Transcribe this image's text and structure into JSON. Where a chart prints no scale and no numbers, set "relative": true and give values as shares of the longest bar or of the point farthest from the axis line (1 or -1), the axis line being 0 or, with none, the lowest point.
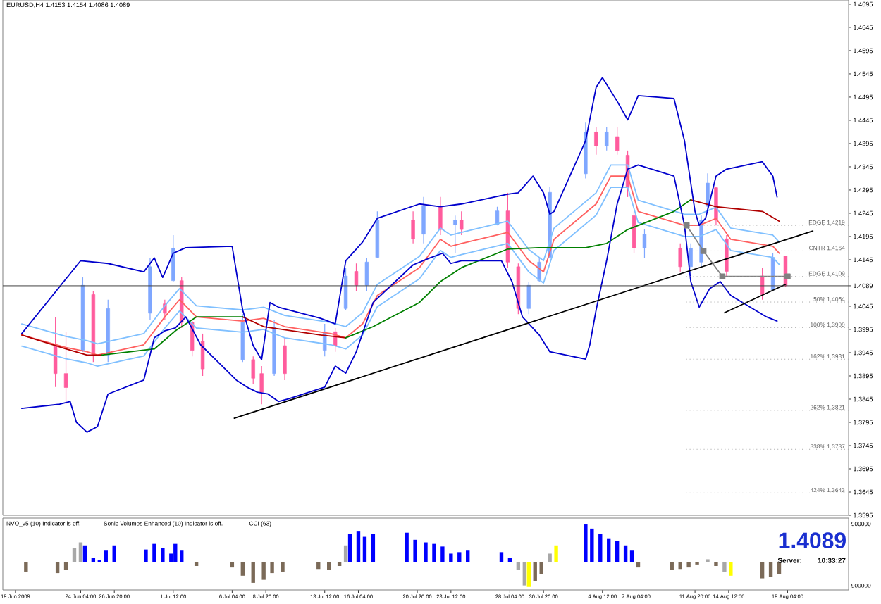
{
  "chart_data": [
    {
      "type": "candlestick",
      "title": "EURUSD,H4 1.4153 1.4154 1.4086 1.4089",
      "xlim": [
        "2009-06-18T00:00",
        "2009-08-24T00:00"
      ],
      "ylim": [
        1.3595,
        1.4704
      ],
      "tick_labels": "y",
      "yticks": [
        1.4695,
        1.4645,
        1.4595,
        1.4545,
        1.4495,
        1.4445,
        1.4395,
        1.4345,
        1.4295,
        1.4245,
        1.4195,
        1.4145,
        1.4089,
        1.4045,
        1.3995,
        1.3945,
        1.3895,
        1.3845,
        1.3795,
        1.3745,
        1.3695,
        1.3645,
        1.3595
      ],
      "x": [
        "2009-06-22T04:00",
        "2009-06-23T00:00",
        "2009-06-24T08:00",
        "2009-06-25T04:00",
        "2009-06-26T08:00",
        "2009-06-29T16:00",
        "2009-06-30T20:00",
        "2009-07-01T12:00",
        "2009-07-02T04:00",
        "2009-07-03T00:00",
        "2009-07-03T20:00",
        "2009-07-07T00:00",
        "2009-07-07T20:00",
        "2009-07-08T12:00",
        "2009-07-09T12:00",
        "2009-07-10T08:00",
        "2009-07-13T12:00",
        "2009-07-14T08:00",
        "2009-07-15T04:00",
        "2009-07-16T00:00",
        "2009-07-16T20:00",
        "2009-07-17T16:00",
        "2009-07-20T12:00",
        "2009-07-21T08:00",
        "2009-07-22T16:00",
        "2009-07-23T20:00",
        "2009-07-24T08:00",
        "2009-07-27T04:00",
        "2009-07-28T00:00",
        "2009-07-28T20:00",
        "2009-07-29T16:00",
        "2009-07-30T12:00",
        "2009-07-31T08:00",
        "2009-08-03T04:00",
        "2009-08-04T00:00",
        "2009-08-04T20:00",
        "2009-08-05T16:00",
        "2009-08-06T12:00",
        "2009-08-07T00:00",
        "2009-08-07T20:00",
        "2009-08-10T16:00",
        "2009-08-11T12:00",
        "2009-08-12T08:00",
        "2009-08-12T20:00",
        "2009-08-13T12:00",
        "2009-08-14T08:00",
        "2009-08-17T04:00",
        "2009-08-18T00:00",
        "2009-08-19T00:00"
      ],
      "ohlc": [
        [
          1.396,
          1.4022,
          1.3871,
          1.39
        ],
        [
          1.39,
          1.399,
          1.3834,
          1.387
        ],
        [
          1.395,
          1.4107,
          1.3947,
          1.409
        ],
        [
          1.407,
          1.4077,
          1.3925,
          1.394
        ],
        [
          1.394,
          1.4059,
          1.3925,
          1.404
        ],
        [
          1.403,
          1.4149,
          1.4016,
          1.413
        ],
        [
          1.405,
          1.4059,
          1.4016,
          1.403
        ],
        [
          1.41,
          1.4198,
          1.4098,
          1.417
        ],
        [
          1.41,
          1.4107,
          1.3998,
          1.401
        ],
        [
          1.401,
          1.4016,
          1.3937,
          1.395
        ],
        [
          1.397,
          1.3986,
          1.3895,
          1.391
        ],
        [
          1.393,
          1.4028,
          1.3925,
          1.401
        ],
        [
          1.393,
          1.3937,
          1.3877,
          1.389
        ],
        [
          1.39,
          1.3916,
          1.3834,
          1.386
        ],
        [
          1.39,
          1.4016,
          1.3895,
          1.4
        ],
        [
          1.396,
          1.3977,
          1.3886,
          1.39
        ],
        [
          1.395,
          1.4007,
          1.3937,
          1.399
        ],
        [
          1.399,
          1.3998,
          1.3947,
          1.396
        ],
        [
          1.404,
          1.4128,
          1.4037,
          1.411
        ],
        [
          1.412,
          1.4137,
          1.4077,
          1.409
        ],
        [
          1.409,
          1.4149,
          1.4077,
          1.414
        ],
        [
          1.415,
          1.4249,
          1.4149,
          1.423
        ],
        [
          1.423,
          1.4249,
          1.418,
          1.419
        ],
        [
          1.42,
          1.428,
          1.418,
          1.426
        ],
        [
          1.426,
          1.428,
          1.4198,
          1.421
        ],
        [
          1.422,
          1.424,
          1.4159,
          1.423
        ],
        [
          1.423,
          1.4249,
          1.4198,
          1.421
        ],
        [
          1.422,
          1.4259,
          1.4219,
          1.425
        ],
        [
          1.425,
          1.4289,
          1.4128,
          1.414
        ],
        [
          1.413,
          1.4137,
          1.4028,
          1.404
        ],
        [
          1.404,
          1.4098,
          1.4028,
          1.409
        ],
        [
          1.41,
          1.4149,
          1.4098,
          1.414
        ],
        [
          1.415,
          1.4301,
          1.4149,
          1.429
        ],
        [
          1.433,
          1.444,
          1.432,
          1.442
        ],
        [
          1.442,
          1.4431,
          1.4371,
          1.439
        ],
        [
          1.439,
          1.4431,
          1.438,
          1.442
        ],
        [
          1.441,
          1.4431,
          1.4371,
          1.438
        ],
        [
          1.437,
          1.438,
          1.428,
          1.43
        ],
        [
          1.424,
          1.4249,
          1.4159,
          1.417
        ],
        [
          1.417,
          1.421,
          1.4149,
          1.42
        ],
        [
          1.417,
          1.418,
          1.4119,
          1.413
        ],
        [
          1.413,
          1.418,
          1.4107,
          1.417
        ],
        [
          1.414,
          1.424,
          1.4128,
          1.423
        ],
        [
          1.426,
          1.4331,
          1.4249,
          1.431
        ],
        [
          1.43,
          1.4301,
          1.4219,
          1.423
        ],
        [
          1.419,
          1.4198,
          1.4107,
          1.412
        ],
        [
          1.411,
          1.4128,
          1.4059,
          1.407
        ],
        [
          1.408,
          1.4159,
          1.4077,
          1.415
        ],
        [
          1.4153,
          1.4154,
          1.4086,
          1.4089
        ]
      ],
      "colors": [
        "#ff5c9d",
        "#ff5c9d",
        "#7fa7ff",
        "#ff5c9d",
        "#7fa7ff",
        "#7fa7ff",
        "#ff5c9d",
        "#7fa7ff",
        "#ff5c9d",
        "#ff5c9d",
        "#ff5c9d",
        "#7fa7ff",
        "#ff5c9d",
        "#ff5c9d",
        "#7fa7ff",
        "#ff5c9d",
        "#7fa7ff",
        "#ff5c9d",
        "#7fa7ff",
        "#ff5c9d",
        "#7fa7ff",
        "#7fa7ff",
        "#ff5c9d",
        "#7fa7ff",
        "#ff5c9d",
        "#7fa7ff",
        "#ff5c9d",
        "#7fa7ff",
        "#ff5c9d",
        "#ff5c9d",
        "#7fa7ff",
        "#7fa7ff",
        "#7fa7ff",
        "#7fa7ff",
        "#ff5c9d",
        "#7fa7ff",
        "#ff5c9d",
        "#ff5c9d",
        "#ff5c9d",
        "#7fa7ff",
        "#ff5c9d",
        "#7fa7ff",
        "#7fa7ff",
        "#7fa7ff",
        "#ff5c9d",
        "#ff5c9d",
        "#ff5c9d",
        "#7fa7ff",
        "#ff5c9d"
      ],
      "series": [
        {
          "type": "line",
          "color": "#80c0ff",
          "x": [
            "2009-06-19T12:00",
            "2009-06-23T00:00",
            "2009-06-24T16:00",
            "2009-06-25T12:00",
            "2009-06-29T04:00",
            "2009-06-30T20:00",
            "2009-07-02T00:00",
            "2009-07-03T08:00",
            "2009-07-07T00:00",
            "2009-07-08T16:00",
            "2009-07-10T08:00",
            "2009-07-14T00:00",
            "2009-07-15T04:00",
            "2009-07-16T12:00",
            "2009-07-17T16:00",
            "2009-07-21T00:00",
            "2009-07-22T16:00",
            "2009-07-23T12:00",
            "2009-07-24T08:00",
            "2009-07-28T00:00",
            "2009-07-29T16:00",
            "2009-07-30T20:00",
            "2009-07-31T16:00",
            "2009-08-04T00:00",
            "2009-08-05T04:00",
            "2009-08-06T12:00",
            "2009-08-07T08:00",
            "2009-08-11T00:00",
            "2009-08-12T04:00",
            "2009-08-13T12:00",
            "2009-08-14T16:00",
            "2009-08-18T00:00",
            "2009-08-18T12:00"
          ],
          "values": [
            1.4007,
            1.398,
            1.3971,
            1.3964,
            1.3986,
            1.4046,
            1.4083,
            1.4046,
            1.4037,
            1.4043,
            1.4025,
            1.401,
            1.4001,
            1.4031,
            1.4092,
            1.4152,
            1.4213,
            1.4198,
            1.4204,
            1.4228,
            1.4167,
            1.4143,
            1.4213,
            1.4289,
            1.4349,
            1.4349,
            1.4273,
            1.4243,
            1.4243,
            1.4258,
            1.4213,
            1.4198,
            1.4183
          ]
        },
        {
          "type": "line",
          "color": "#80c0ff",
          "x": [
            "2009-06-19T12:00",
            "2009-06-23T00:00",
            "2009-06-24T16:00",
            "2009-06-25T12:00",
            "2009-06-29T04:00",
            "2009-06-30T20:00",
            "2009-07-02T00:00",
            "2009-07-03T08:00",
            "2009-07-07T00:00",
            "2009-07-08T16:00",
            "2009-07-10T08:00",
            "2009-07-14T00:00",
            "2009-07-15T04:00",
            "2009-07-16T12:00",
            "2009-07-17T16:00",
            "2009-07-21T00:00",
            "2009-07-22T16:00",
            "2009-07-23T12:00",
            "2009-07-24T08:00",
            "2009-07-28T00:00",
            "2009-07-29T16:00",
            "2009-07-30T20:00",
            "2009-07-31T16:00",
            "2009-08-04T00:00",
            "2009-08-05T04:00",
            "2009-08-06T12:00",
            "2009-08-07T08:00",
            "2009-08-11T00:00",
            "2009-08-12T04:00",
            "2009-08-13T12:00",
            "2009-08-14T16:00",
            "2009-08-18T00:00",
            "2009-08-18T12:00"
          ],
          "values": [
            1.3959,
            1.3932,
            1.3923,
            1.3916,
            1.3938,
            1.3998,
            1.4035,
            1.3998,
            1.3989,
            1.3995,
            1.3977,
            1.3962,
            1.3953,
            1.3983,
            1.4044,
            1.4104,
            1.4165,
            1.415,
            1.4156,
            1.418,
            1.4119,
            1.4095,
            1.4165,
            1.4241,
            1.4301,
            1.4301,
            1.4225,
            1.4195,
            1.4195,
            1.421,
            1.4165,
            1.415,
            1.4135
          ]
        },
        {
          "type": "line",
          "color": "#ff6060",
          "x": [
            "2009-06-19T12:00",
            "2009-06-23T00:00",
            "2009-06-24T16:00",
            "2009-06-25T12:00",
            "2009-06-29T04:00",
            "2009-06-30T20:00",
            "2009-07-02T00:00",
            "2009-07-03T08:00",
            "2009-07-07T00:00",
            "2009-07-08T16:00",
            "2009-07-10T08:00",
            "2009-07-14T00:00",
            "2009-07-15T04:00",
            "2009-07-16T12:00",
            "2009-07-17T16:00",
            "2009-07-21T00:00",
            "2009-07-22T16:00",
            "2009-07-23T12:00",
            "2009-07-24T08:00",
            "2009-07-28T00:00",
            "2009-07-29T16:00",
            "2009-07-30T20:00",
            "2009-07-31T16:00",
            "2009-08-04T00:00",
            "2009-08-05T04:00",
            "2009-08-06T12:00",
            "2009-08-07T08:00",
            "2009-08-11T00:00",
            "2009-08-12T04:00",
            "2009-08-13T12:00",
            "2009-08-14T16:00",
            "2009-08-18T00:00",
            "2009-08-18T12:00"
          ],
          "values": [
            1.3983,
            1.3956,
            1.3947,
            1.394,
            1.3962,
            1.4022,
            1.4059,
            1.4022,
            1.4013,
            1.4019,
            1.4001,
            1.3986,
            1.3977,
            1.4007,
            1.4068,
            1.4128,
            1.4189,
            1.4174,
            1.418,
            1.4204,
            1.4143,
            1.4119,
            1.4189,
            1.4265,
            1.4325,
            1.4325,
            1.4249,
            1.4219,
            1.4219,
            1.4234,
            1.4189,
            1.4174,
            1.4159
          ]
        },
        {
          "type": "line",
          "color": "#b00000",
          "x": [
            "2009-06-19T12:00",
            "2009-06-23T00:00",
            "2009-06-24T16:00",
            "2009-06-25T20:00"
          ],
          "values": [
            1.3983,
            1.3953,
            1.394,
            1.394
          ]
        },
        {
          "type": "line",
          "color": "#b00000",
          "x": [
            "2009-07-07T00:00",
            "2009-07-08T16:00",
            "2009-07-13T04:00",
            "2009-07-15T04:00"
          ],
          "values": [
            1.4022,
            1.4001,
            1.3983,
            1.3977
          ]
        },
        {
          "type": "line",
          "color": "#b00000",
          "x": [
            "2009-08-11T12:00",
            "2009-08-13T12:00",
            "2009-08-17T04:00",
            "2009-08-18T12:00"
          ],
          "values": [
            1.4274,
            1.4259,
            1.4249,
            1.4228
          ]
        },
        {
          "type": "line",
          "color": "#008000",
          "x": [
            "2009-06-25T20:00",
            "2009-06-30T00:00",
            "2009-07-01T16:00",
            "2009-07-03T08:00",
            "2009-07-07T00:00"
          ],
          "values": [
            1.394,
            1.3953,
            1.3992,
            1.4022,
            1.4022
          ]
        },
        {
          "type": "line",
          "color": "#008000",
          "x": [
            "2009-07-15T04:00",
            "2009-07-17T08:00",
            "2009-07-21T00:00",
            "2009-07-22T16:00",
            "2009-07-24T08:00",
            "2009-07-28T00:00",
            "2009-07-30T12:00",
            "2009-08-03T04:00",
            "2009-08-04T20:00",
            "2009-08-06T12:00",
            "2009-08-10T04:00",
            "2009-08-11T12:00"
          ],
          "values": [
            1.3977,
            1.4001,
            1.4053,
            1.4098,
            1.4128,
            1.4168,
            1.4171,
            1.4171,
            1.418,
            1.421,
            1.4249,
            1.4274
          ]
        },
        {
          "type": "line",
          "color": "#0000cc",
          "x": [
            "2009-06-19T12:00",
            "2009-06-24T04:00",
            "2009-06-26T08:00",
            "2009-06-29T04:00",
            "2009-06-30T00:00",
            "2009-06-30T16:00",
            "2009-07-01T12:00",
            "2009-07-02T12:00",
            "2009-07-06T04:00",
            "2009-07-07T00:00",
            "2009-07-07T20:00",
            "2009-07-08T12:00",
            "2009-07-09T04:00",
            "2009-07-09T20:00",
            "2009-07-13T04:00",
            "2009-07-14T08:00",
            "2009-07-15T04:00",
            "2009-07-16T12:00",
            "2009-07-17T16:00",
            "2009-07-21T00:00",
            "2009-07-22T16:00",
            "2009-07-24T08:00",
            "2009-07-28T00:00",
            "2009-07-28T20:00",
            "2009-07-30T00:00",
            "2009-07-30T20:00",
            "2009-07-31T08:00",
            "2009-07-31T16:00",
            "2009-08-03T04:00",
            "2009-08-04T00:00",
            "2009-08-04T12:00",
            "2009-08-05T16:00",
            "2009-08-06T12:00",
            "2009-08-07T08:00",
            "2009-08-10T04:00",
            "2009-08-11T00:00",
            "2009-08-11T20:00",
            "2009-08-12T04:00",
            "2009-08-12T16:00",
            "2009-08-13T12:00",
            "2009-08-14T08:00",
            "2009-08-17T04:00",
            "2009-08-18T00:00",
            "2009-08-18T08:00"
          ],
          "values": [
            1.3986,
            1.4143,
            1.4137,
            1.4119,
            1.4149,
            1.4107,
            1.4159,
            1.4171,
            1.4174,
            1.4037,
            1.396,
            1.393,
            1.4053,
            1.4043,
            1.4019,
            1.4007,
            1.4143,
            1.4183,
            1.4234,
            1.4265,
            1.4259,
            1.4265,
            1.4286,
            1.4289,
            1.4325,
            1.4289,
            1.4243,
            1.4249,
            1.4401,
            1.4516,
            1.4537,
            1.4486,
            1.4446,
            1.4498,
            1.4492,
            1.4401,
            1.4249,
            1.4219,
            1.4234,
            1.4325,
            1.434,
            1.4356,
            1.4325,
            1.428
          ]
        },
        {
          "type": "line",
          "color": "#0000cc",
          "x": [
            "2009-06-19T12:00",
            "2009-06-22T12:00",
            "2009-06-23T08:00",
            "2009-06-23T20:00",
            "2009-06-24T16:00",
            "2009-06-25T12:00",
            "2009-06-26T08:00",
            "2009-06-29T04:00",
            "2009-06-30T00:00",
            "2009-06-30T20:00",
            "2009-07-01T16:00",
            "2009-07-02T12:00",
            "2009-07-03T16:00",
            "2009-07-06T12:00",
            "2009-07-07T08:00",
            "2009-07-08T04:00",
            "2009-07-09T00:00",
            "2009-07-09T20:00",
            "2009-07-10T16:00",
            "2009-07-13T12:00",
            "2009-07-14T08:00",
            "2009-07-15T04:00",
            "2009-07-16T00:00",
            "2009-07-17T08:00",
            "2009-07-20T12:00",
            "2009-07-21T20:00",
            "2009-07-22T20:00",
            "2009-07-23T12:00",
            "2009-07-24T08:00",
            "2009-07-27T12:00",
            "2009-07-28T08:00",
            "2009-07-29T04:00",
            "2009-07-30T12:00",
            "2009-07-31T08:00",
            "2009-08-03T04:00",
            "2009-08-03T12:00",
            "2009-08-04T00:00",
            "2009-08-04T20:00",
            "2009-08-05T16:00",
            "2009-08-06T12:00",
            "2009-08-07T08:00",
            "2009-08-10T04:00",
            "2009-08-11T00:00",
            "2009-08-11T12:00",
            "2009-08-12T04:00",
            "2009-08-13T00:00",
            "2009-08-13T20:00",
            "2009-08-14T16:00",
            "2009-08-17T12:00",
            "2009-08-18T08:00"
          ],
          "values": [
            1.3825,
            1.3834,
            1.384,
            1.3795,
            1.3774,
            1.3786,
            1.3856,
            1.3886,
            1.3977,
            1.3992,
            1.3998,
            1.4022,
            1.3962,
            1.3886,
            1.3871,
            1.386,
            1.3856,
            1.384,
            1.3846,
            1.3871,
            1.3916,
            1.3901,
            1.3947,
            1.4053,
            1.4134,
            1.4149,
            1.4159,
            1.4137,
            1.4143,
            1.4143,
            1.4098,
            1.4022,
            1.3983,
            1.3947,
            1.3931,
            1.3962,
            1.4037,
            1.4143,
            1.4265,
            1.434,
            1.4349,
            1.4325,
            1.4219,
            1.4098,
            1.4043,
            1.4083,
            1.4098,
            1.4068,
            1.4022,
            1.4013
          ]
        },
        {
          "type": "line",
          "color": "#000000",
          "x": [
            "2009-07-06T08:00",
            "2009-08-21T04:00"
          ],
          "values": [
            1.3804,
            1.4207
          ]
        },
        {
          "type": "line",
          "color": "#000000",
          "x": [
            "2009-08-14T04:00",
            "2009-08-19T00:00"
          ],
          "values": [
            1.4031,
            1.4092
          ]
        },
        {
          "type": "line",
          "color": "#808080",
          "marker": "square",
          "x": [
            "2009-08-11T04:00",
            "2009-08-12T12:00",
            "2009-08-14T00:00",
            "2009-08-19T04:00"
          ],
          "values": [
            1.4219,
            1.4164,
            1.4109,
            1.4109
          ]
        }
      ],
      "ref_lines": [
        {
          "axis": "y",
          "value": 1.4089,
          "color": "#404040",
          "line_style": "solid"
        },
        {
          "axis": "y",
          "value": 1.4219,
          "label": "EDGE  1.4219",
          "color": "#a0a0a0",
          "line_style": "dotted"
        },
        {
          "axis": "y",
          "value": 1.4164,
          "label": "CNTR  1.4164",
          "color": "#a0a0a0",
          "line_style": "dotted"
        },
        {
          "axis": "y",
          "value": 1.4109,
          "label": "EDGE  1.4109",
          "color": "#a0a0a0",
          "line_style": "dotted"
        },
        {
          "axis": "y",
          "value": 1.4054,
          "label": "50%  1.4054",
          "color": "#a0a0a0",
          "line_style": "dotted"
        },
        {
          "axis": "y",
          "value": 1.3999,
          "label": "100%  1.3999",
          "color": "#a0a0a0",
          "line_style": "dotted"
        },
        {
          "axis": "y",
          "value": 1.3931,
          "label": "162%  1.3931",
          "color": "#a0a0a0",
          "line_style": "dotted"
        },
        {
          "axis": "y",
          "value": 1.3821,
          "label": "262%  1.3821",
          "color": "#a0a0a0",
          "line_style": "dotted"
        },
        {
          "axis": "y",
          "value": 1.3737,
          "label": "338%  1.3737",
          "color": "#a0a0a0",
          "line_style": "dotted"
        },
        {
          "axis": "y",
          "value": 1.3643,
          "label": "424%  1.3643",
          "color": "#a0a0a0",
          "line_style": "dotted"
        }
      ]
    },
    {
      "type": "bar",
      "relative": true,
      "xlim": [
        "2009-06-18T00:00",
        "2009-08-24T00:00"
      ],
      "tick_labels": "x",
      "xticks": [
        {
          "value": "2009-06-19",
          "label": "19 Jun 2009"
        },
        {
          "value": "2009-06-24T04:00",
          "label": "24 Jun 04:00"
        },
        {
          "value": "2009-06-26T20:00",
          "label": "26 Jun 20:00"
        },
        {
          "value": "2009-07-01T12:00",
          "label": "1 Jul 12:00"
        },
        {
          "value": "2009-07-06T04:00",
          "label": "6 Jul 04:00"
        },
        {
          "value": "2009-07-08T20:00",
          "label": "8 Jul 20:00"
        },
        {
          "value": "2009-07-13T12:00",
          "label": "13 Jul 12:00"
        },
        {
          "value": "2009-07-16T04:00",
          "label": "16 Jul 04:00"
        },
        {
          "value": "2009-07-20T20:00",
          "label": "20 Jul 20:00"
        },
        {
          "value": "2009-07-23T12:00",
          "label": "23 Jul 12:00"
        },
        {
          "value": "2009-07-28T04:00",
          "label": "28 Jul 04:00"
        },
        {
          "value": "2009-07-30T20:00",
          "label": "30 Jul 20:00"
        },
        {
          "value": "2009-08-04T12:00",
          "label": "4 Aug 12:00"
        },
        {
          "value": "2009-08-07T04:00",
          "label": "7 Aug 04:00"
        },
        {
          "value": "2009-08-11T20:00",
          "label": "11 Aug 20:00"
        },
        {
          "value": "2009-08-14T12:00",
          "label": "14 Aug 12:00"
        },
        {
          "value": "2009-08-19T04:00",
          "label": "19 Aug 04:00"
        }
      ],
      "x": [
        "2009-06-19T20:00",
        "2009-06-22T08:00",
        "2009-06-23T00:00",
        "2009-06-23T16:00",
        "2009-06-24T04:00",
        "2009-06-24T12:00",
        "2009-06-25T04:00",
        "2009-06-25T16:00",
        "2009-06-26T04:00",
        "2009-06-26T20:00",
        "2009-06-29T08:00",
        "2009-06-30T00:00",
        "2009-06-30T16:00",
        "2009-07-01T08:00",
        "2009-07-01T16:00",
        "2009-07-02T04:00",
        "2009-07-03T08:00",
        "2009-07-06T04:00",
        "2009-07-07T00:00",
        "2009-07-07T20:00",
        "2009-07-08T16:00",
        "2009-07-09T08:00",
        "2009-07-10T04:00",
        "2009-07-13T00:00",
        "2009-07-13T20:00",
        "2009-07-14T16:00",
        "2009-07-15T04:00",
        "2009-07-15T12:00",
        "2009-07-16T04:00",
        "2009-07-16T16:00",
        "2009-07-17T08:00",
        "2009-07-20T00:00",
        "2009-07-20T16:00",
        "2009-07-21T12:00",
        "2009-07-22T04:00",
        "2009-07-22T20:00",
        "2009-07-23T12:00",
        "2009-07-24T04:00",
        "2009-07-24T20:00",
        "2009-07-27T12:00",
        "2009-07-28T04:00",
        "2009-07-28T20:00",
        "2009-07-29T08:00",
        "2009-07-29T16:00",
        "2009-07-30T04:00",
        "2009-07-30T16:00",
        "2009-07-31T08:00",
        "2009-07-31T20:00",
        "2009-08-03T04:00",
        "2009-08-03T16:00",
        "2009-08-04T08:00",
        "2009-08-05T00:00",
        "2009-08-05T16:00",
        "2009-08-06T08:00",
        "2009-08-06T20:00",
        "2009-08-07T08:00",
        "2009-08-10T00:00",
        "2009-08-10T16:00",
        "2009-08-11T08:00",
        "2009-08-12T00:00",
        "2009-08-12T20:00",
        "2009-08-13T12:00",
        "2009-08-14T04:00",
        "2009-08-14T16:00",
        "2009-08-17T04:00",
        "2009-08-17T20:00",
        "2009-08-18T12:00"
      ],
      "values": [
        -0.26,
        -0.3,
        -0.22,
        0.37,
        0.52,
        0.44,
        0.11,
        0.04,
        0.3,
        0.44,
        0.33,
        0.48,
        0.37,
        0.22,
        0.48,
        0.3,
        -0.11,
        -0.15,
        -0.37,
        -0.56,
        -0.48,
        -0.3,
        -0.26,
        -0.19,
        -0.22,
        -0.11,
        0.44,
        0.74,
        0.81,
        0.67,
        0.74,
        0.78,
        0.59,
        0.52,
        0.48,
        0.41,
        0.22,
        0.26,
        0.3,
        0.26,
        0.11,
        -0.22,
        -0.63,
        -0.67,
        -0.52,
        -0.33,
        0.22,
        0.44,
        1,
        0.89,
        0.74,
        0.63,
        0.56,
        0.44,
        0.3,
        -0.15,
        -0.22,
        -0.19,
        -0.15,
        -0.07,
        0.07,
        -0.11,
        -0.26,
        -0.37,
        -0.44,
        -0.41,
        -0.33
      ],
      "colors": [
        "#7b6a58",
        "#7b6a58",
        "#7b6a58",
        "#a8a8a8",
        "#a8a8a8",
        "#0000ff",
        "#0000ff",
        "#0000ff",
        "#0000ff",
        "#0000ff",
        "#0000ff",
        "#0000ff",
        "#0000ff",
        "#0000ff",
        "#0000ff",
        "#0000ff",
        "#7b6a58",
        "#7b6a58",
        "#7b6a58",
        "#7b6a58",
        "#7b6a58",
        "#7b6a58",
        "#7b6a58",
        "#7b6a58",
        "#7b6a58",
        "#7b6a58",
        "#a8a8a8",
        "#0000ff",
        "#0000ff",
        "#0000ff",
        "#0000ff",
        "#0000ff",
        "#0000ff",
        "#0000ff",
        "#0000ff",
        "#0000ff",
        "#0000ff",
        "#0000ff",
        "#0000ff",
        "#0000ff",
        "#0000ff",
        "#a8a8a8",
        "#a8a8a8",
        "#ffff00",
        "#7b6a58",
        "#7b6a58",
        "#a8a8a8",
        "#ffff00",
        "#0000ff",
        "#0000ff",
        "#0000ff",
        "#0000ff",
        "#0000ff",
        "#0000ff",
        "#0000ff",
        "#7b6a58",
        "#7b6a58",
        "#7b6a58",
        "#7b6a58",
        "#7b6a58",
        "#a8a8a8",
        "#7b6a58",
        "#a8a8a8",
        "#ffff00",
        "#7b6a58",
        "#7b6a58",
        "#7b6a58"
      ],
      "annotations": [
        "NVO_v5 (10)  Indicator is off.",
        "Sonic Volumes Enhanced (10)  Indicator is off.",
        "CCI (63)",
        "1.4089",
        "Server:",
        "10:33:27",
        "900000",
        "900000"
      ]
    }
  ]
}
